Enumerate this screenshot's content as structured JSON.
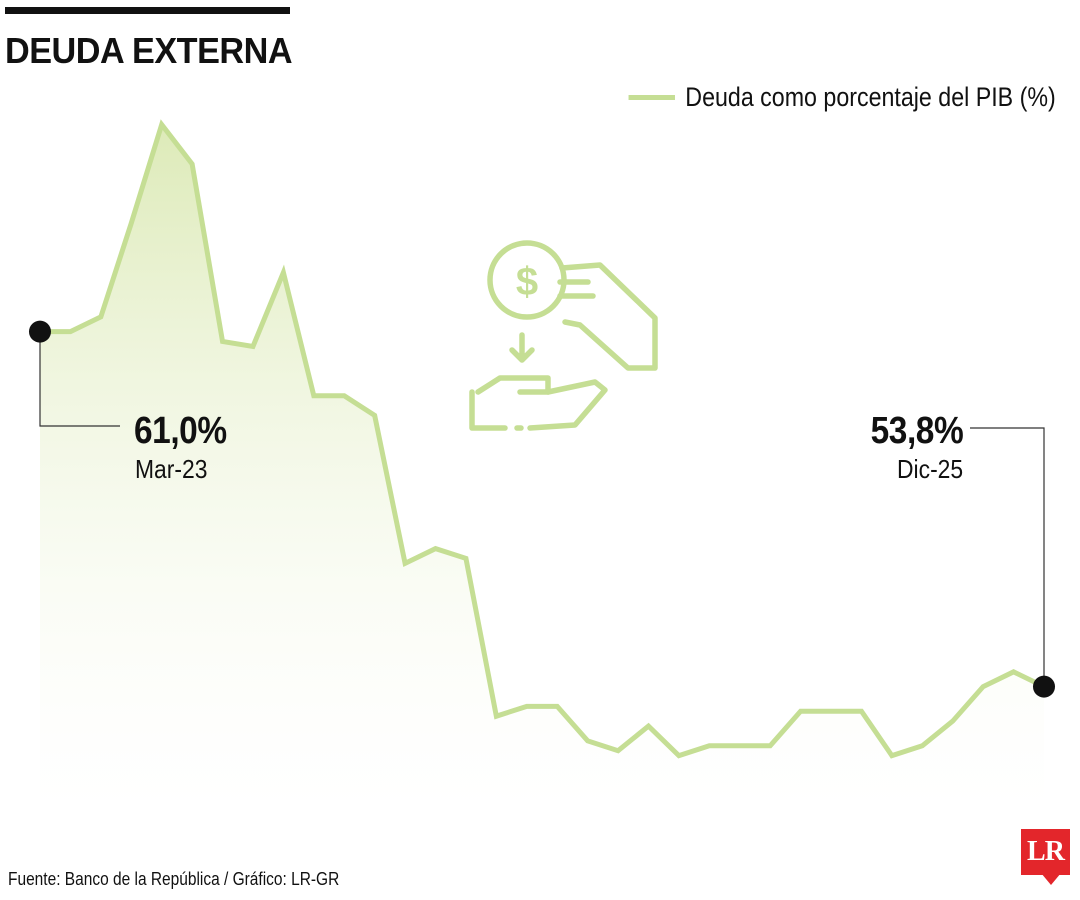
{
  "header": {
    "title": "DEUDA EXTERNA"
  },
  "legend": {
    "label": "Deuda como porcentaje del PIB (%)",
    "color": "#c5de94"
  },
  "callouts": {
    "start": {
      "value": "61,0%",
      "date": "Mar-23"
    },
    "end": {
      "value": "53,8%",
      "date": "Dic-25"
    }
  },
  "icon": {
    "name": "money-hand-icon",
    "color": "#c5de94"
  },
  "footer": {
    "source": "Fuente: Banco de la República / Gráfico: LR-GR",
    "logo": "LR",
    "logo_color": "#e3262b"
  },
  "chart_data": {
    "type": "area",
    "title": "DEUDA EXTERNA",
    "xlabel": "",
    "ylabel": "",
    "series": [
      {
        "name": "Deuda como porcentaje del PIB (%)",
        "values": [
          61.0,
          61.0,
          61.3,
          63.2,
          65.2,
          64.4,
          60.8,
          60.7,
          62.2,
          59.7,
          59.7,
          59.3,
          56.3,
          56.6,
          56.4,
          53.2,
          53.4,
          53.4,
          52.7,
          52.5,
          53.0,
          52.4,
          52.6,
          52.6,
          52.6,
          53.3,
          53.3,
          53.3,
          52.4,
          52.6,
          53.1,
          53.8,
          54.1,
          53.8
        ]
      }
    ],
    "ylim": [
      51.5,
      65.8
    ],
    "grid": false,
    "legend_position": "top-right",
    "annotations": [
      {
        "index": 0,
        "label": "61,0%",
        "date": "Mar-23"
      },
      {
        "index": 33,
        "label": "53,8%",
        "date": "Dic-25"
      }
    ]
  }
}
